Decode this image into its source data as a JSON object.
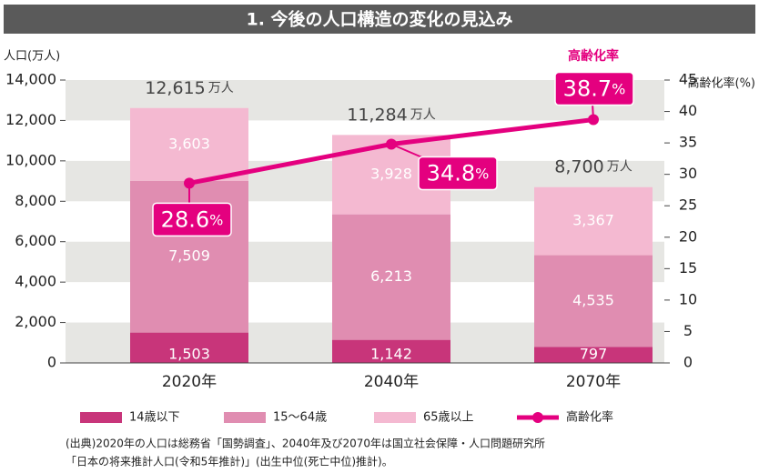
{
  "chart_data": {
    "type": "stacked-bar-line",
    "title": "1. 今後の人口構造の変化の見込み",
    "y_label": "人口(万人)",
    "y2_label": "高齢化率(%)",
    "line_label": "高齢化率",
    "categories": [
      "2020年",
      "2040年",
      "2070年"
    ],
    "series": [
      {
        "name": "14歳以下",
        "color": "#c8357a",
        "values": [
          1503,
          1142,
          797
        ],
        "value_labels": [
          "1,503",
          "1,142",
          "797"
        ]
      },
      {
        "name": "15〜64歳",
        "color": "#e08db1",
        "values": [
          7509,
          6213,
          4535
        ],
        "value_labels": [
          "7,509",
          "6,213",
          "4,535"
        ]
      },
      {
        "name": "65歳以上",
        "color": "#f4b9d1",
        "values": [
          3603,
          3928,
          3367
        ],
        "value_labels": [
          "3,603",
          "3,928",
          "3,367"
        ]
      },
      {
        "name": "高齢化率",
        "color": "#e4007f",
        "axis": "y2",
        "type": "line",
        "values": [
          28.6,
          34.8,
          38.7
        ],
        "unit": "%"
      }
    ],
    "totals": {
      "values": [
        12615,
        11284,
        8700
      ],
      "value_labels": [
        "12,615",
        "11,284",
        "8,700"
      ],
      "unit": "万人"
    },
    "ylim": [
      0,
      14000
    ],
    "yticks": [
      0,
      {
        "value": 2000,
        "label": "2,000"
      },
      {
        "value": 4000,
        "label": "4,000"
      },
      {
        "value": 6000,
        "label": "6,000"
      },
      {
        "value": 8000,
        "label": "8,000"
      },
      {
        "value": 10000,
        "label": "10,000"
      },
      {
        "value": 12000,
        "label": "12,000"
      },
      {
        "value": 14000,
        "label": "14,000"
      }
    ],
    "y2lim": [
      0,
      45
    ],
    "y2ticks": [
      0,
      5,
      10,
      15,
      20,
      25,
      30,
      35,
      40,
      45
    ],
    "grid_bands": true,
    "source": [
      "(出典)2020年の人口は総務省「国勢調査」、2040年及び2070年は国立社会保障・人口問題研究所",
      "「日本の将来推計人口(令和5年推計)」(出生中位(死亡中位)推計)。"
    ]
  }
}
